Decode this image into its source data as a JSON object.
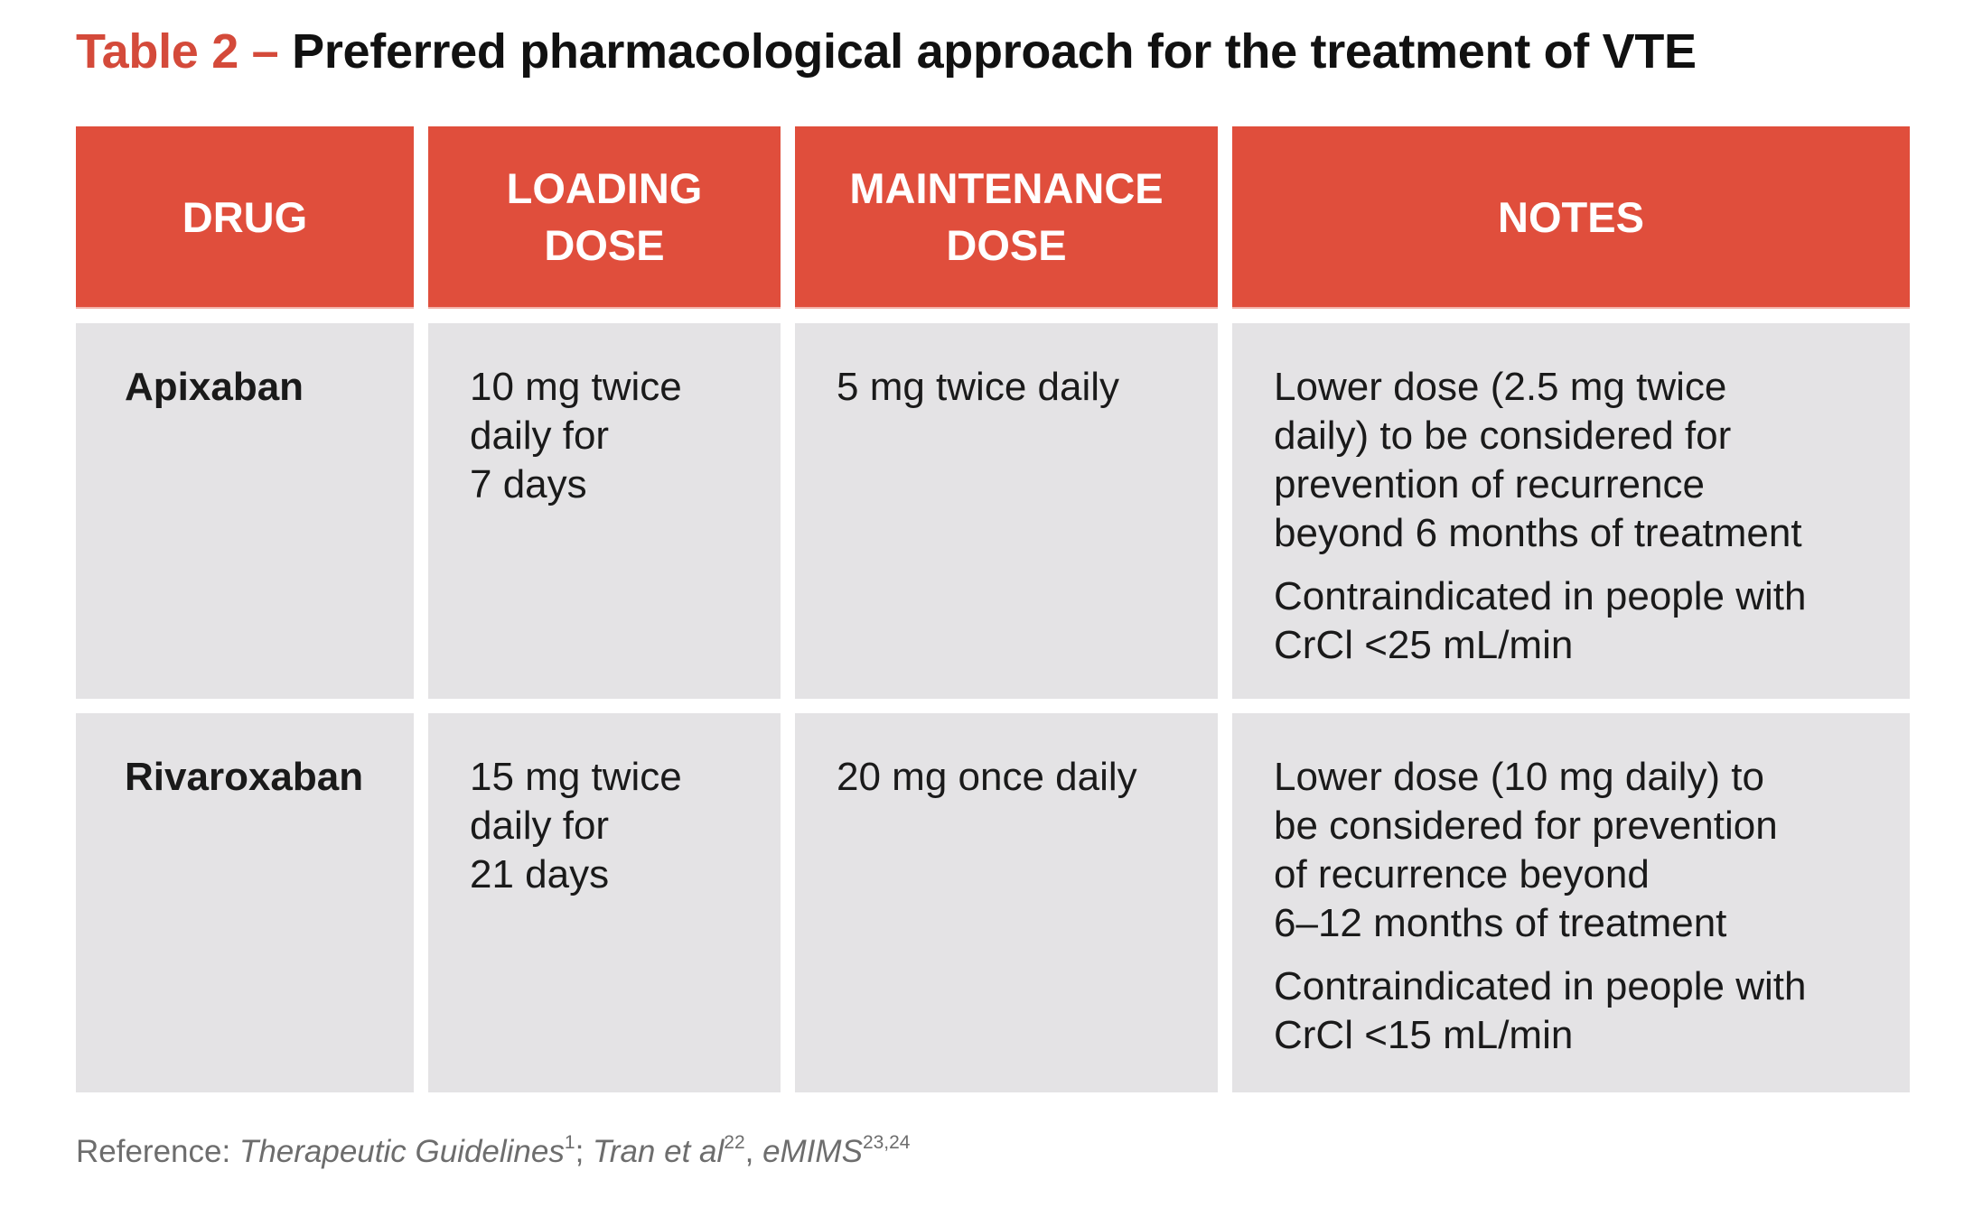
{
  "title": {
    "label": "Table 2 –",
    "text": "Preferred pharmacological approach for the treatment of VTE"
  },
  "colors": {
    "accent": "#d44a3a",
    "header_bg": "#e04e3c",
    "cell_bg": "#e4e3e5"
  },
  "table": {
    "headers": [
      "DRUG",
      "LOADING\nDOSE",
      "MAINTENANCE\nDOSE",
      "NOTES"
    ],
    "rows": [
      {
        "drug": "Apixaban",
        "loading": "10 mg twice\ndaily for\n7 days",
        "maintenance": "5 mg twice daily",
        "notes": [
          "Lower dose (2.5 mg twice\ndaily) to be considered for\nprevention of recurrence\nbeyond 6 months of treatment",
          "Contraindicated in people with\nCrCl <25 mL/min"
        ]
      },
      {
        "drug": "Rivaroxaban",
        "loading": "15 mg twice\ndaily for\n21 days",
        "maintenance": "20 mg once daily",
        "notes": [
          "Lower dose (10 mg daily) to\nbe considered for prevention\nof recurrence beyond\n6–12 months of treatment",
          "Contraindicated in people with\nCrCl <15 mL/min"
        ]
      }
    ]
  },
  "reference": {
    "prefix": "Reference: ",
    "source1": "Therapeutic Guidelines",
    "sup1": "1",
    "sep1": "; ",
    "source2": "Tran et al",
    "sup2": "22",
    "sep2": ", ",
    "source3": "eMIMS",
    "sup3": "23,24"
  }
}
